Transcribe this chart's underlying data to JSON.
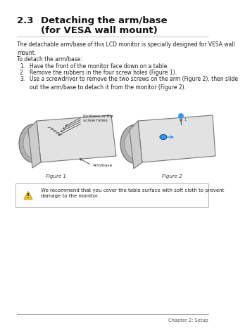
{
  "bg_color": "#ffffff",
  "section_num": "2.3",
  "title_line1": "Detaching the arm/base",
  "title_line2": "(for VESA wall mount)",
  "body_text1": "The detachable arm/base of this LCD monitor is specially designed for VESA wall\nmount.",
  "body_text2": "To detach the arm/base:",
  "step1": "Have the front of the monitor face down on a table.",
  "step2": "Remove the rubbers in the four screw holes (Figure 1).",
  "step3": "Use a screwdriver to remove the two screws on the arm (Figure 2), then slide\nout the arm/base to detach it from the monitor (Figure 2).",
  "fig1_label": "Figure 1",
  "fig2_label": "Figure 2",
  "caution_text": "We recommend that you cover the table surface with soft cloth to prevent\ndamage to the monitor.",
  "footer_text": "Chapter 2: Setup",
  "rubbers_label": "Rubbers in the\nscrew holes",
  "armbase_label": "Arm/base",
  "title_color": "#111111",
  "text_color": "#222222",
  "footer_color": "#555555",
  "accent_color": "#3399ff",
  "line_color": "#aaaaaa"
}
